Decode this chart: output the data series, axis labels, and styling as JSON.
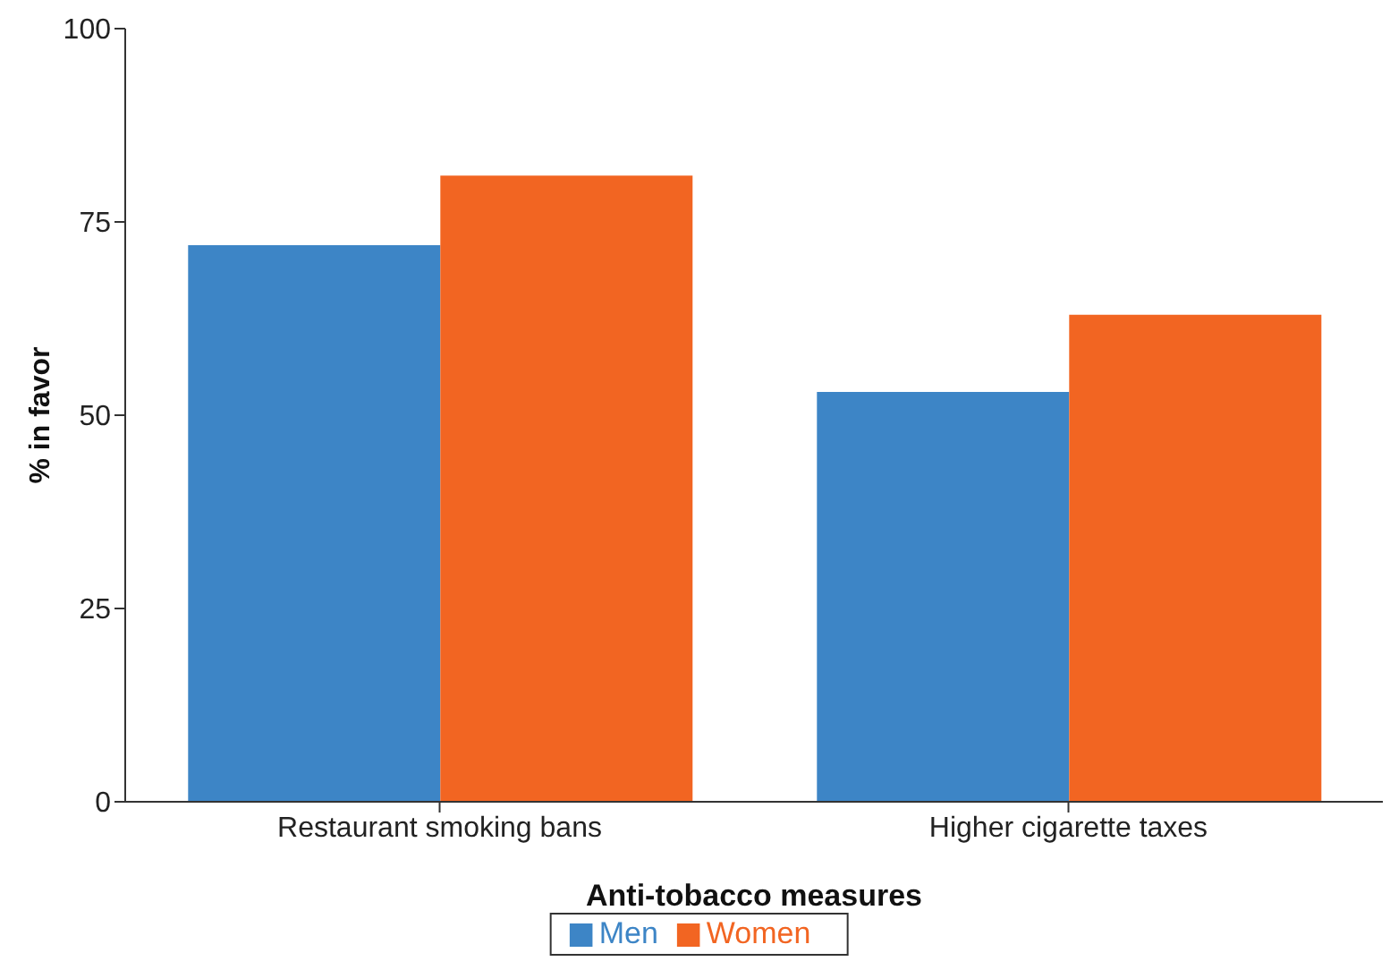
{
  "chart_data": {
    "type": "bar",
    "xlabel": "Anti-tobacco measures",
    "ylabel": "% in favor",
    "categories": [
      "Restaurant smoking bans",
      "Higher cigarette taxes"
    ],
    "series": [
      {
        "name": "Men",
        "color": "#3d85c6",
        "values": [
          72,
          53
        ]
      },
      {
        "name": "Women",
        "color": "#f26522",
        "values": [
          81,
          63
        ]
      }
    ],
    "ylim": [
      0,
      100
    ],
    "yticks": [
      0,
      25,
      50,
      75,
      100
    ],
    "grid": false,
    "legend": "bottom"
  }
}
